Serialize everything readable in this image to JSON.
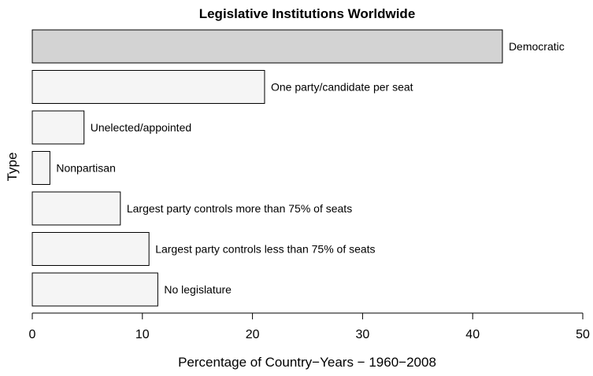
{
  "chart_data": {
    "type": "bar",
    "orientation": "horizontal",
    "title": "Legislative Institutions Worldwide",
    "xlabel": "Percentage of Country−Years − 1960−2008",
    "ylabel": "Type",
    "xlim": [
      0,
      50
    ],
    "xticks": [
      0,
      10,
      20,
      30,
      40,
      50
    ],
    "grid": false,
    "categories": [
      "Democratic",
      "One party/candidate per seat",
      "Unelected/appointed",
      "Nonpartisan",
      "Largest party controls more than 75% of seats",
      "Largest party controls less than 75% of seats",
      "No legislature"
    ],
    "values": [
      42.7,
      21.1,
      4.7,
      1.6,
      8.0,
      10.6,
      11.4
    ],
    "bar_colors": [
      "#d3d3d3",
      "#f5f5f5",
      "#f5f5f5",
      "#f5f5f5",
      "#f5f5f5",
      "#f5f5f5",
      "#f5f5f5"
    ]
  }
}
